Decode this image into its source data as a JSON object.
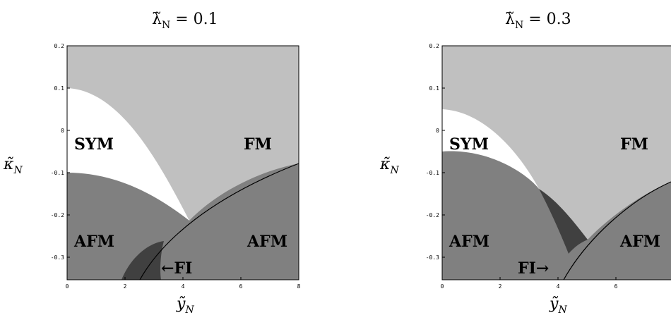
{
  "colors": {
    "fm": "#c0c0c0",
    "sym": "#ffffff",
    "afm": "#808080",
    "fi": "#404040"
  },
  "chart_data": [
    {
      "type": "phase-diagram",
      "title": "λ̃_N = 0.1",
      "title_parts": {
        "main": "λ̃",
        "sub": "N",
        "eq": " = 0.1"
      },
      "xlabel": {
        "main": "ỹ",
        "sub": "N"
      },
      "ylabel": {
        "main": "κ̃",
        "sub": "N"
      },
      "xlim": [
        0,
        8
      ],
      "ylim": [
        -0.35,
        0.2
      ],
      "xticks": [
        "0",
        "2",
        "4",
        "6",
        "8"
      ],
      "yticks": [
        "0.2",
        "0.1",
        "0",
        "-0.1",
        "-0.2",
        "-0.3"
      ],
      "regions": [
        "SYM",
        "FM",
        "AFM",
        "AFM",
        "←FI"
      ]
    },
    {
      "type": "phase-diagram",
      "title": "λ̃_N = 0.3",
      "title_parts": {
        "main": "λ̃",
        "sub": "N",
        "eq": " = 0.3"
      },
      "xlabel": {
        "main": "ỹ",
        "sub": "N"
      },
      "ylabel": {
        "main": "κ̃",
        "sub": "N"
      },
      "xlim": [
        0,
        8
      ],
      "ylim": [
        -0.35,
        0.2
      ],
      "xticks": [
        "0",
        "2",
        "4",
        "6"
      ],
      "yticks": [
        "0.2",
        "0.1",
        "0",
        "-0.1",
        "-0.2",
        "-0.3"
      ],
      "regions": [
        "SYM",
        "FM",
        "AFM",
        "AFM",
        "FI→"
      ]
    }
  ]
}
